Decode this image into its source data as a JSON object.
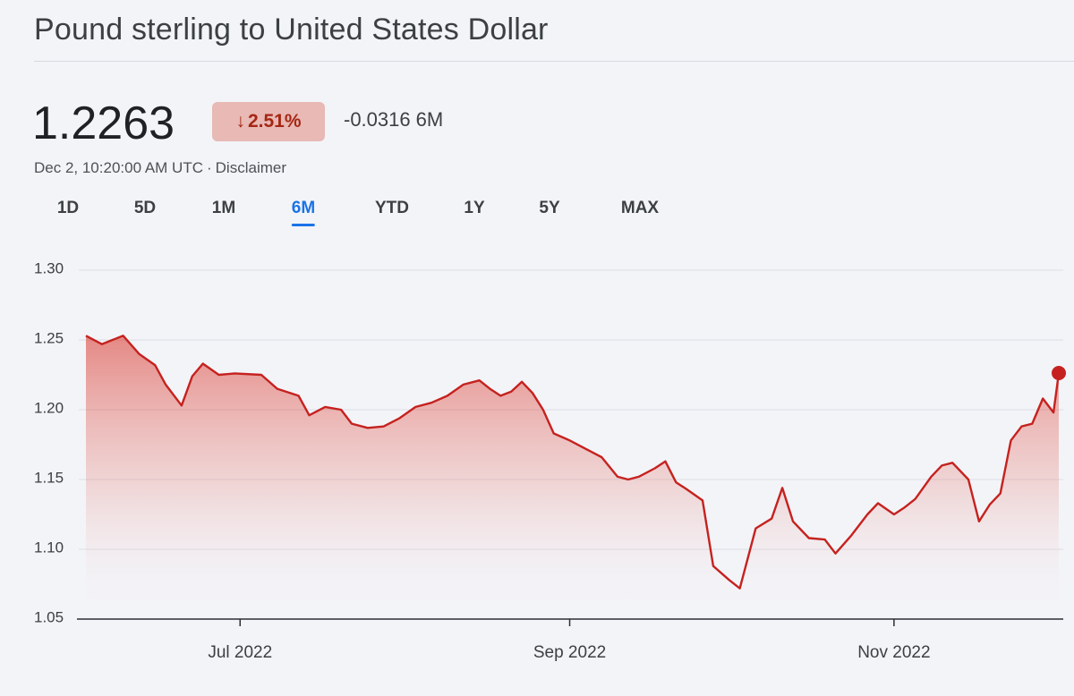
{
  "header": {
    "title": "Pound sterling to United States Dollar"
  },
  "quote": {
    "price": "1.2263",
    "change_arrow": "↓",
    "change_percent": "2.51%",
    "change_value": "-0.0316",
    "change_period": "6M",
    "timestamp": "Dec 2, 10:20:00 AM UTC",
    "separator": "·",
    "disclaimer": "Disclaimer"
  },
  "tabs": [
    {
      "label": "1D",
      "active": false
    },
    {
      "label": "5D",
      "active": false
    },
    {
      "label": "1M",
      "active": false
    },
    {
      "label": "6M",
      "active": true
    },
    {
      "label": "YTD",
      "active": false
    },
    {
      "label": "1Y",
      "active": false
    },
    {
      "label": "5Y",
      "active": false
    },
    {
      "label": "MAX",
      "active": false
    }
  ],
  "colors": {
    "line": "#c5221f",
    "badge_bg": "#e8b9b5",
    "badge_text": "#a52714",
    "active_tab": "#1a73e8"
  },
  "chart_data": {
    "type": "area",
    "title": "",
    "xlabel": "",
    "ylabel": "",
    "ylim": [
      1.05,
      1.3
    ],
    "yticks": [
      "1.30",
      "1.25",
      "1.20",
      "1.15",
      "1.10",
      "1.05"
    ],
    "xticks": [
      {
        "label": "Jul 2022",
        "date": "2022-07-01"
      },
      {
        "label": "Sep 2022",
        "date": "2022-09-01"
      },
      {
        "label": "Nov 2022",
        "date": "2022-11-01"
      }
    ],
    "grid": "horizontal",
    "series": [
      {
        "points": [
          [
            "2022-06-02",
            1.253
          ],
          [
            "2022-06-05",
            1.247
          ],
          [
            "2022-06-09",
            1.253
          ],
          [
            "2022-06-12",
            1.24
          ],
          [
            "2022-06-15",
            1.232
          ],
          [
            "2022-06-17",
            1.218
          ],
          [
            "2022-06-20",
            1.203
          ],
          [
            "2022-06-22",
            1.224
          ],
          [
            "2022-06-24",
            1.233
          ],
          [
            "2022-06-27",
            1.225
          ],
          [
            "2022-06-30",
            1.226
          ],
          [
            "2022-07-05",
            1.225
          ],
          [
            "2022-07-08",
            1.215
          ],
          [
            "2022-07-12",
            1.21
          ],
          [
            "2022-07-14",
            1.196
          ],
          [
            "2022-07-17",
            1.202
          ],
          [
            "2022-07-20",
            1.2
          ],
          [
            "2022-07-22",
            1.19
          ],
          [
            "2022-07-25",
            1.187
          ],
          [
            "2022-07-28",
            1.188
          ],
          [
            "2022-07-31",
            1.194
          ],
          [
            "2022-08-03",
            1.202
          ],
          [
            "2022-08-06",
            1.205
          ],
          [
            "2022-08-09",
            1.21
          ],
          [
            "2022-08-12",
            1.218
          ],
          [
            "2022-08-15",
            1.221
          ],
          [
            "2022-08-17",
            1.215
          ],
          [
            "2022-08-19",
            1.21
          ],
          [
            "2022-08-21",
            1.213
          ],
          [
            "2022-08-23",
            1.22
          ],
          [
            "2022-08-25",
            1.212
          ],
          [
            "2022-08-27",
            1.2
          ],
          [
            "2022-08-29",
            1.183
          ],
          [
            "2022-09-01",
            1.178
          ],
          [
            "2022-09-04",
            1.172
          ],
          [
            "2022-09-07",
            1.166
          ],
          [
            "2022-09-10",
            1.152
          ],
          [
            "2022-09-12",
            1.15
          ],
          [
            "2022-09-14",
            1.152
          ],
          [
            "2022-09-17",
            1.158
          ],
          [
            "2022-09-19",
            1.163
          ],
          [
            "2022-09-21",
            1.148
          ],
          [
            "2022-09-23",
            1.143
          ],
          [
            "2022-09-26",
            1.135
          ],
          [
            "2022-09-28",
            1.088
          ],
          [
            "2022-10-01",
            1.078
          ],
          [
            "2022-10-03",
            1.072
          ],
          [
            "2022-10-06",
            1.115
          ],
          [
            "2022-10-09",
            1.122
          ],
          [
            "2022-10-11",
            1.144
          ],
          [
            "2022-10-13",
            1.12
          ],
          [
            "2022-10-16",
            1.108
          ],
          [
            "2022-10-19",
            1.107
          ],
          [
            "2022-10-21",
            1.097
          ],
          [
            "2022-10-24",
            1.11
          ],
          [
            "2022-10-27",
            1.125
          ],
          [
            "2022-10-29",
            1.133
          ],
          [
            "2022-11-01",
            1.125
          ],
          [
            "2022-11-03",
            1.13
          ],
          [
            "2022-11-05",
            1.136
          ],
          [
            "2022-11-08",
            1.152
          ],
          [
            "2022-11-10",
            1.16
          ],
          [
            "2022-11-12",
            1.162
          ],
          [
            "2022-11-15",
            1.15
          ],
          [
            "2022-11-17",
            1.12
          ],
          [
            "2022-11-19",
            1.132
          ],
          [
            "2022-11-21",
            1.14
          ],
          [
            "2022-11-23",
            1.178
          ],
          [
            "2022-11-25",
            1.188
          ],
          [
            "2022-11-27",
            1.19
          ],
          [
            "2022-11-29",
            1.208
          ],
          [
            "2022-12-01",
            1.198
          ],
          [
            "2022-12-02",
            1.2263
          ]
        ]
      }
    ]
  }
}
